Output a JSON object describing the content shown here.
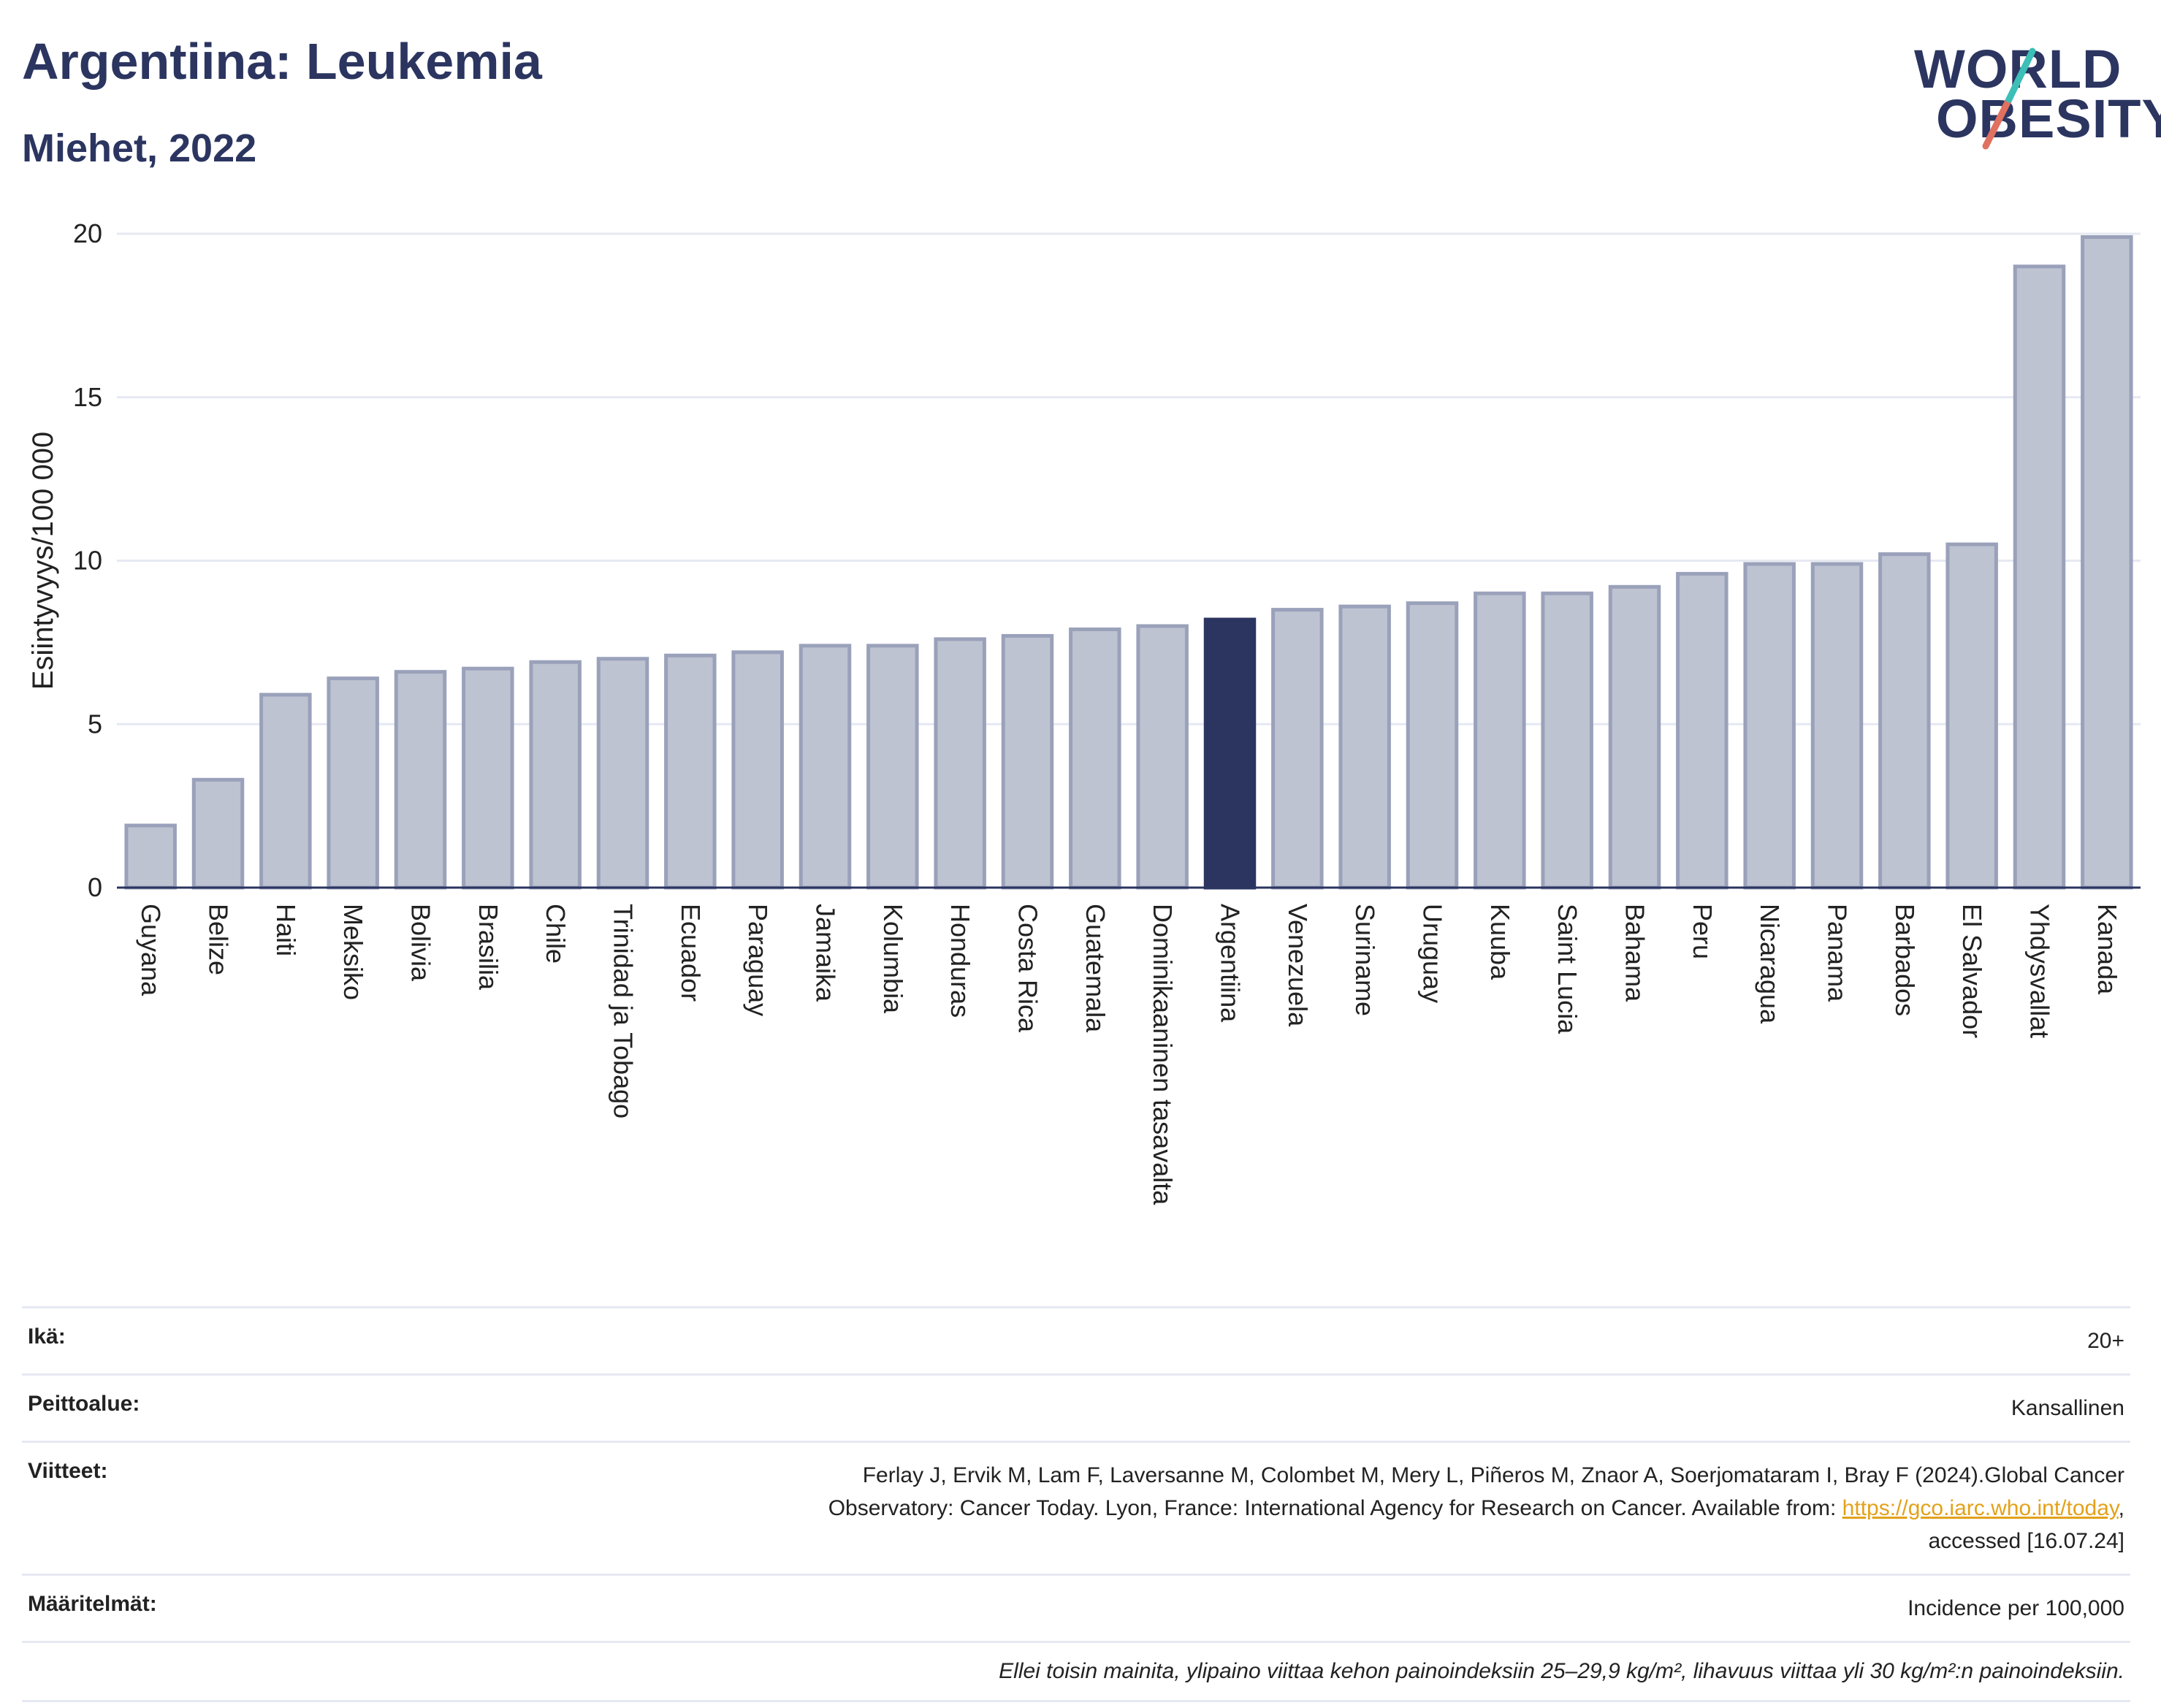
{
  "header": {
    "title": "Argentiina: Leukemia",
    "subtitle": "Miehet, 2022"
  },
  "logo": {
    "line1": "WORLD",
    "line2": "OBESITY"
  },
  "colors": {
    "bar": "#bec3d1",
    "bar_border": "#9aa1ba",
    "highlight": "#2b3560",
    "grid": "#e6e9f2",
    "text": "#2b3560"
  },
  "chart_data": {
    "type": "bar",
    "title": "Argentiina: Leukemia",
    "subtitle": "Miehet, 2022",
    "ylabel": "Esiintyvyys/100 000",
    "xlabel": "",
    "ylim": [
      0,
      20
    ],
    "yticks": [
      0,
      5,
      10,
      15,
      20
    ],
    "grid": true,
    "highlight": "Argentiina",
    "categories": [
      "Guyana",
      "Belize",
      "Haiti",
      "Meksiko",
      "Bolivia",
      "Brasilia",
      "Chile",
      "Trinidad ja Tobago",
      "Ecuador",
      "Paraguay",
      "Jamaika",
      "Kolumbia",
      "Honduras",
      "Costa Rica",
      "Guatemala",
      "Dominikaaninen tasavalta",
      "Argentiina",
      "Venezuela",
      "Suriname",
      "Uruguay",
      "Kuuba",
      "Saint Lucia",
      "Bahama",
      "Peru",
      "Nicaragua",
      "Panama",
      "Barbados",
      "El Salvador",
      "Yhdysvallat",
      "Kanada"
    ],
    "values": [
      1.9,
      3.3,
      5.9,
      6.4,
      6.6,
      6.7,
      6.9,
      7.0,
      7.1,
      7.2,
      7.4,
      7.4,
      7.6,
      7.7,
      7.9,
      8.0,
      8.2,
      8.5,
      8.6,
      8.7,
      9.0,
      9.0,
      9.2,
      9.6,
      9.9,
      9.9,
      10.2,
      10.5,
      19.0,
      19.9
    ]
  },
  "info": {
    "age_label": "Ikä:",
    "age_value": "20+",
    "coverage_label": "Peittoalue:",
    "coverage_value": "Kansallinen",
    "refs_label": "Viitteet:",
    "refs_line1": "Ferlay J, Ervik M, Lam F, Laversanne M, Colombet M, Mery L, Piñeros M, Znaor A, Soerjomataram I, Bray F (2024).Global Cancer",
    "refs_line2": "Observatory: Cancer Today. Lyon, France: International Agency for Research on Cancer. Available from:",
    "refs_link": "https://gco.iarc.who.int/today",
    "refs_line3": "accessed [16.07.24]",
    "defs_label": "Määritelmät:",
    "defs_value": "Incidence per 100,000",
    "note": "Ellei toisin mainita, ylipaino viittaa kehon painoindeksiin 25–29,9 kg/m², lihavuus viittaa yli 30 kg/m²:n painoindeksiin."
  }
}
